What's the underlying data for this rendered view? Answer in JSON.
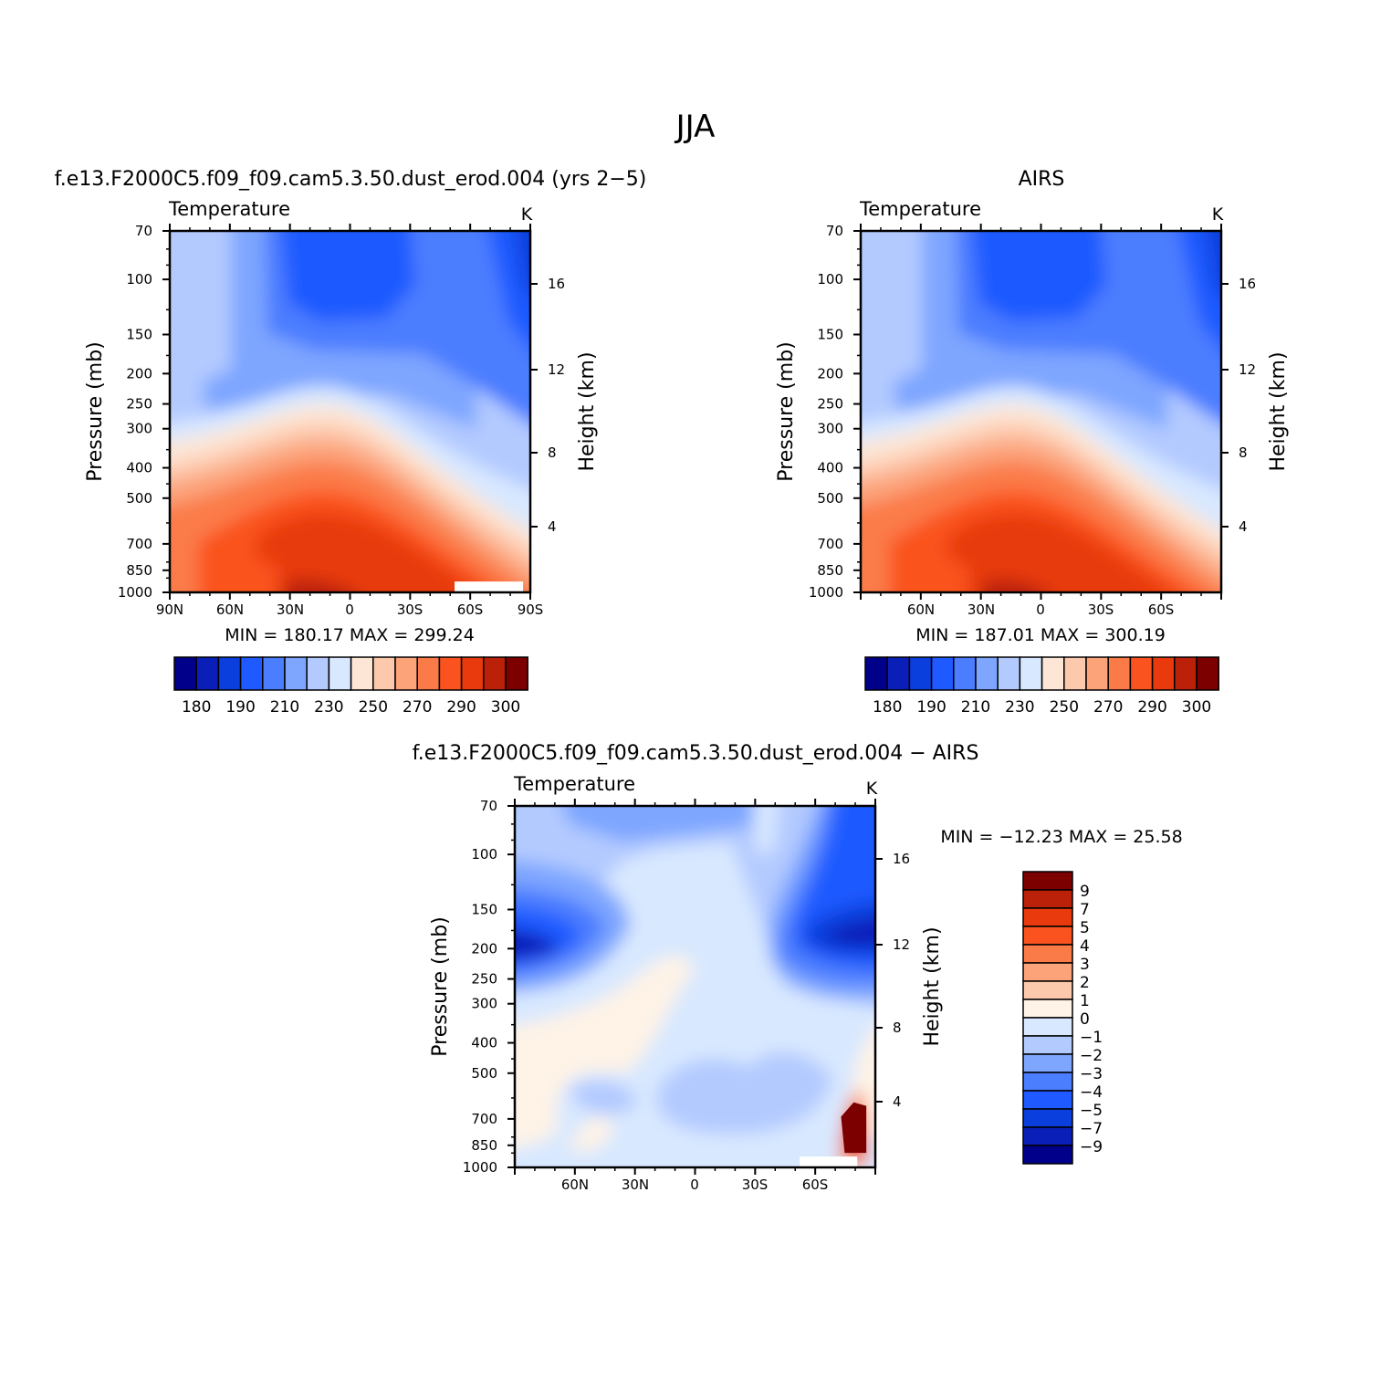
{
  "figure": {
    "title": "JJA",
    "colors": {
      "abs_levels": [
        "#00008b",
        "#0a1fb8",
        "#0a3fdd",
        "#1e5aff",
        "#4b7dff",
        "#7ea6ff",
        "#b3caff",
        "#d8e8ff",
        "#fde6d6",
        "#fdc9ad",
        "#fca37a",
        "#fb7b48",
        "#fa531f",
        "#e83a0d",
        "#bb2009",
        "#7d0000"
      ],
      "diff_levels": [
        "#00008b",
        "#0a1fb8",
        "#0a3fdd",
        "#1e5aff",
        "#4b7dff",
        "#7ea6ff",
        "#b3caff",
        "#d8e8ff",
        "#fef3e6",
        "#fdc9ad",
        "#fca37a",
        "#fb7b48",
        "#fa531f",
        "#e83a0d",
        "#bb2009",
        "#7d0000"
      ]
    }
  },
  "chart_data": [
    {
      "type": "heatmap",
      "panel_title": "f.e13.F2000C5.f09_f09.cam5.3.50.dust_erod.004 (yrs 2−5)",
      "left_label": "Temperature",
      "units": "K",
      "ylabel": "Pressure (mb)",
      "ylabel_right": "Height (km)",
      "x_ticks": [
        "90N",
        "60N",
        "30N",
        "0",
        "30S",
        "60S",
        "90S"
      ],
      "y_ticks": [
        "70",
        "100",
        "150",
        "200",
        "250",
        "300",
        "400",
        "500",
        "700",
        "850",
        "1000"
      ],
      "y_ticks_right": [
        "16",
        "12",
        "8",
        "4"
      ],
      "stats": "MIN = 180.17 MAX = 299.24",
      "colorbar_labels": [
        "180",
        "190",
        "210",
        "230",
        "250",
        "270",
        "290",
        "300"
      ],
      "scale": "log-pressure",
      "ylim": [
        1000,
        70
      ],
      "xlim": [
        "90N",
        "90S"
      ]
    },
    {
      "type": "heatmap",
      "panel_title": "AIRS",
      "left_label": "Temperature",
      "units": "K",
      "ylabel": "Pressure (mb)",
      "ylabel_right": "Height (km)",
      "x_ticks": [
        "60N",
        "30N",
        "0",
        "30S",
        "60S"
      ],
      "y_ticks": [
        "70",
        "100",
        "150",
        "200",
        "250",
        "300",
        "400",
        "500",
        "700",
        "850",
        "1000"
      ],
      "y_ticks_right": [
        "16",
        "12",
        "8",
        "4"
      ],
      "stats": "MIN = 187.01 MAX = 300.19",
      "colorbar_labels": [
        "180",
        "190",
        "210",
        "230",
        "250",
        "270",
        "290",
        "300"
      ],
      "scale": "log-pressure",
      "ylim": [
        1000,
        70
      ]
    },
    {
      "type": "heatmap",
      "panel_title": "f.e13.F2000C5.f09_f09.cam5.3.50.dust_erod.004 − AIRS",
      "left_label": "Temperature",
      "units": "K",
      "ylabel": "Pressure (mb)",
      "ylabel_right": "Height (km)",
      "x_ticks": [
        "60N",
        "30N",
        "0",
        "30S",
        "60S"
      ],
      "y_ticks": [
        "70",
        "100",
        "150",
        "200",
        "250",
        "300",
        "400",
        "500",
        "700",
        "850",
        "1000"
      ],
      "y_ticks_right": [
        "16",
        "12",
        "8",
        "4"
      ],
      "stats": "MIN = −12.23 MAX = 25.58",
      "colorbar_labels": [
        "9",
        "7",
        "5",
        "4",
        "3",
        "2",
        "1",
        "0",
        "−1",
        "−2",
        "−3",
        "−4",
        "−5",
        "−7",
        "−9"
      ],
      "scale": "log-pressure",
      "ylim": [
        1000,
        70
      ]
    }
  ]
}
